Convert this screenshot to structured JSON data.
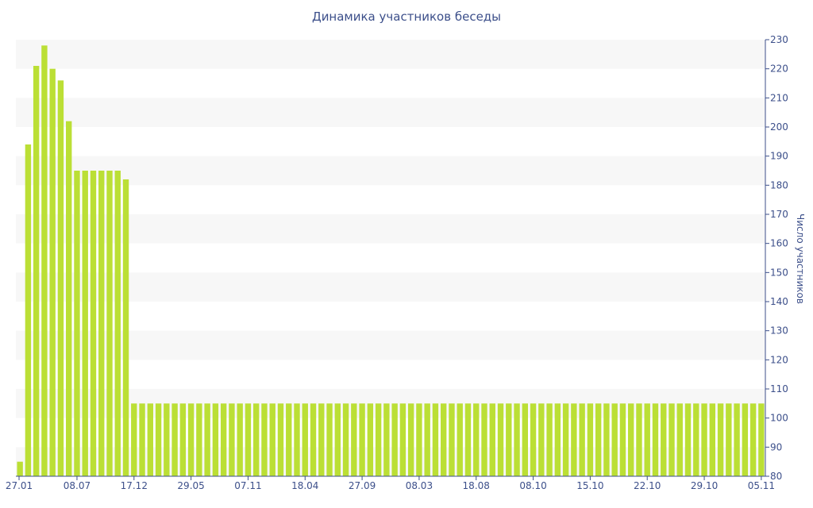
{
  "chart_data": {
    "type": "bar",
    "title": "Динамика участников беседы",
    "xlabel": "",
    "ylabel": "Число участников",
    "ylim": [
      80,
      230
    ],
    "y_ticks": [
      80,
      90,
      100,
      110,
      120,
      130,
      140,
      150,
      160,
      170,
      180,
      190,
      200,
      210,
      220,
      230
    ],
    "x_tick_labels": [
      {
        "index": 0,
        "label": "27.01"
      },
      {
        "index": 7,
        "label": "08.07"
      },
      {
        "index": 14,
        "label": "17.12"
      },
      {
        "index": 21,
        "label": "29.05"
      },
      {
        "index": 28,
        "label": "07.11"
      },
      {
        "index": 35,
        "label": "18.04"
      },
      {
        "index": 42,
        "label": "27.09"
      },
      {
        "index": 49,
        "label": "08.03"
      },
      {
        "index": 56,
        "label": "18.08"
      },
      {
        "index": 63,
        "label": "08.10"
      },
      {
        "index": 70,
        "label": "15.10"
      },
      {
        "index": 77,
        "label": "22.10"
      },
      {
        "index": 84,
        "label": "29.10"
      },
      {
        "index": 91,
        "label": "05.11"
      }
    ],
    "grid": "horizontal alternating bands",
    "y_axis_position": "right",
    "bar_color": "#bbdf35",
    "band_color": "#f7f7f7",
    "axis_color": "#3c4f8a",
    "values": [
      85,
      194,
      221,
      228,
      220,
      216,
      202,
      185,
      185,
      185,
      185,
      185,
      185,
      182,
      105,
      105,
      105,
      105,
      105,
      105,
      105,
      105,
      105,
      105,
      105,
      105,
      105,
      105,
      105,
      105,
      105,
      105,
      105,
      105,
      105,
      105,
      105,
      105,
      105,
      105,
      105,
      105,
      105,
      105,
      105,
      105,
      105,
      105,
      105,
      105,
      105,
      105,
      105,
      105,
      105,
      105,
      105,
      105,
      105,
      105,
      105,
      105,
      105,
      105,
      105,
      105,
      105,
      105,
      105,
      105,
      105,
      105,
      105,
      105,
      105,
      105,
      105,
      105,
      105,
      105,
      105,
      105,
      105,
      105,
      105,
      105,
      105,
      105,
      105,
      105,
      105,
      105
    ]
  }
}
